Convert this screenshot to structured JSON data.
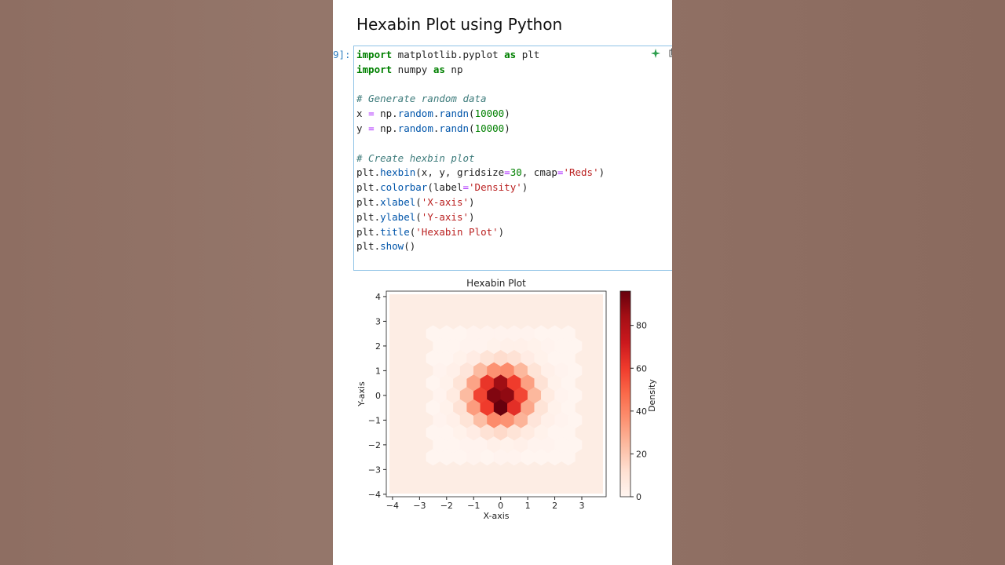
{
  "notebook": {
    "heading": "Hexabin Plot using Python",
    "cell": {
      "prompt": "9]:",
      "lines": [
        [
          {
            "text": "import",
            "color": "#008000",
            "bold": true
          },
          {
            "text": " matplotlib.pyplot "
          },
          {
            "text": "as",
            "color": "#008000",
            "bold": true
          },
          {
            "text": " plt"
          }
        ],
        [
          {
            "text": "import",
            "color": "#008000",
            "bold": true
          },
          {
            "text": " numpy "
          },
          {
            "text": "as",
            "color": "#008000",
            "bold": true
          },
          {
            "text": " np"
          }
        ],
        [],
        [
          {
            "text": "# Generate random data",
            "color": "#3d7b7b",
            "italic": true
          }
        ],
        [
          {
            "text": "x "
          },
          {
            "text": "=",
            "color": "#aa22ff"
          },
          {
            "text": " np."
          },
          {
            "text": "random",
            "color": "#0055aa"
          },
          {
            "text": "."
          },
          {
            "text": "randn",
            "color": "#0055aa"
          },
          {
            "text": "("
          },
          {
            "text": "10000",
            "color": "#008000"
          },
          {
            "text": ")"
          }
        ],
        [
          {
            "text": "y "
          },
          {
            "text": "=",
            "color": "#aa22ff"
          },
          {
            "text": " np."
          },
          {
            "text": "random",
            "color": "#0055aa"
          },
          {
            "text": "."
          },
          {
            "text": "randn",
            "color": "#0055aa"
          },
          {
            "text": "("
          },
          {
            "text": "10000",
            "color": "#008000"
          },
          {
            "text": ")"
          }
        ],
        [],
        [
          {
            "text": "# Create hexbin plot",
            "color": "#3d7b7b",
            "italic": true
          }
        ],
        [
          {
            "text": "plt."
          },
          {
            "text": "hexbin",
            "color": "#0055aa"
          },
          {
            "text": "(x, y, gridsize"
          },
          {
            "text": "=",
            "color": "#aa22ff"
          },
          {
            "text": "30",
            "color": "#008000"
          },
          {
            "text": ", cmap"
          },
          {
            "text": "=",
            "color": "#aa22ff"
          },
          {
            "text": "'Reds'",
            "color": "#ba2121"
          },
          {
            "text": ")"
          }
        ],
        [
          {
            "text": "plt."
          },
          {
            "text": "colorbar",
            "color": "#0055aa"
          },
          {
            "text": "(label"
          },
          {
            "text": "=",
            "color": "#aa22ff"
          },
          {
            "text": "'Density'",
            "color": "#ba2121"
          },
          {
            "text": ")"
          }
        ],
        [
          {
            "text": "plt."
          },
          {
            "text": "xlabel",
            "color": "#0055aa"
          },
          {
            "text": "("
          },
          {
            "text": "'X-axis'",
            "color": "#ba2121"
          },
          {
            "text": ")"
          }
        ],
        [
          {
            "text": "plt."
          },
          {
            "text": "ylabel",
            "color": "#0055aa"
          },
          {
            "text": "("
          },
          {
            "text": "'Y-axis'",
            "color": "#ba2121"
          },
          {
            "text": ")"
          }
        ],
        [
          {
            "text": "plt."
          },
          {
            "text": "title",
            "color": "#0055aa"
          },
          {
            "text": "("
          },
          {
            "text": "'Hexabin Plot'",
            "color": "#ba2121"
          },
          {
            "text": ")"
          }
        ],
        [
          {
            "text": "plt."
          },
          {
            "text": "show",
            "color": "#0055aa"
          },
          {
            "text": "()"
          }
        ]
      ]
    }
  },
  "chart_data": {
    "type": "hexbin",
    "title": "Hexabin Plot",
    "x_label": "X-axis",
    "y_label": "Y-axis",
    "xlim": [
      -4.23,
      3.9
    ],
    "ylim": [
      -4.1,
      4.22
    ],
    "xticks": [
      {
        "value": -4,
        "label": "−4"
      },
      {
        "value": -3,
        "label": "−3"
      },
      {
        "value": -2,
        "label": "−2"
      },
      {
        "value": -1,
        "label": "−1"
      },
      0,
      1,
      2,
      3
    ],
    "yticks": [
      {
        "value": -4,
        "label": "−4"
      },
      {
        "value": -3,
        "label": "−3"
      },
      {
        "value": -2,
        "label": "−2"
      },
      {
        "value": -1,
        "label": "−1"
      },
      0,
      1,
      2,
      3,
      4
    ],
    "colormap": "Reds",
    "hex_x": [
      -2.5,
      -2,
      -1.5,
      -1,
      -0.5,
      0,
      0.5,
      1,
      1.5,
      2,
      2.5
    ],
    "hex_y": [
      2.5,
      2,
      1.5,
      1,
      0.5,
      0,
      -0.5,
      -1,
      -1.5,
      -2,
      -2.5
    ],
    "counts": [
      [
        0,
        0,
        0,
        1,
        1,
        1,
        1,
        1,
        0,
        0,
        0
      ],
      [
        0,
        0,
        1,
        1,
        2,
        3,
        3,
        2,
        1,
        0,
        0
      ],
      [
        0,
        0,
        2,
        5,
        10,
        13,
        11,
        5,
        2,
        0,
        0
      ],
      [
        1,
        3,
        9,
        24,
        36,
        38,
        25,
        10,
        3,
        1,
        0
      ],
      [
        0,
        2,
        10,
        31,
        62,
        85,
        60,
        32,
        11,
        2,
        0
      ],
      [
        1,
        6,
        24,
        58,
        91,
        88,
        57,
        25,
        6,
        1,
        0
      ],
      [
        0,
        2,
        11,
        33,
        60,
        96,
        64,
        30,
        10,
        2,
        0
      ],
      [
        1,
        3,
        10,
        23,
        38,
        36,
        26,
        9,
        3,
        1,
        0
      ],
      [
        0,
        0,
        2,
        5,
        11,
        14,
        10,
        6,
        2,
        0,
        0
      ],
      [
        0,
        0,
        1,
        1,
        3,
        2,
        3,
        1,
        1,
        0,
        0
      ],
      [
        0,
        0,
        0,
        1,
        0,
        1,
        1,
        0,
        0,
        0,
        0
      ]
    ],
    "colorbar": {
      "label": "Density",
      "lim": [
        0,
        96
      ],
      "ticks": [
        0,
        20,
        40,
        60,
        80
      ]
    }
  }
}
